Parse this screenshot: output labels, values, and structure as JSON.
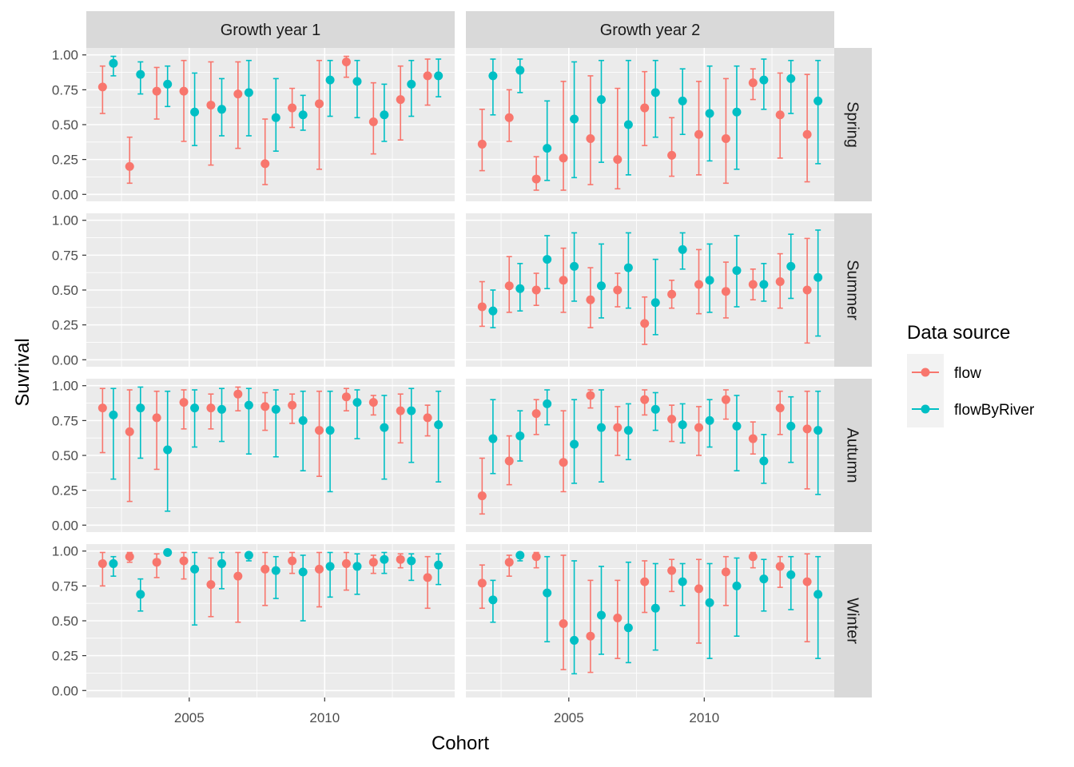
{
  "chart_data": {
    "type": "scatter",
    "xlabel": "Cohort",
    "ylabel": "Suvrival",
    "xlim": [
      2001.2,
      2014.8
    ],
    "ylim": [
      -0.05,
      1.05
    ],
    "x_ticks": [
      2005,
      2010
    ],
    "x_tick_labels": [
      "2005",
      "2010"
    ],
    "y_ticks": [
      0,
      0.25,
      0.5,
      0.75,
      1
    ],
    "y_tick_labels": [
      "0.00",
      "0.25",
      "0.50",
      "0.75",
      "1.00"
    ],
    "grid": true,
    "dodge": 0.4,
    "columns": [
      "Growth year 1",
      "Growth year 2"
    ],
    "rows": [
      "Spring",
      "Summer",
      "Autumn",
      "Winter"
    ],
    "legend": {
      "title": "Data source",
      "position": "right",
      "entries": [
        {
          "name": "flow",
          "color": "#F8766D"
        },
        {
          "name": "flowByRiver",
          "color": "#00BFC4"
        }
      ]
    },
    "series_names": [
      "flow",
      "flowByRiver"
    ],
    "series_colors": [
      "#F8766D",
      "#00BFC4"
    ],
    "x": [
      2002,
      2003,
      2004,
      2005,
      2006,
      2007,
      2008,
      2009,
      2010,
      2011,
      2012,
      2013,
      2014
    ],
    "panels": [
      {
        "column": "Growth year 1",
        "row": "Spring",
        "flow": {
          "y": [
            0.77,
            0.2,
            0.74,
            0.74,
            0.64,
            0.72,
            0.22,
            0.62,
            0.65,
            0.95,
            0.52,
            0.68,
            0.85
          ],
          "lo": [
            0.58,
            0.08,
            0.54,
            0.38,
            0.21,
            0.33,
            0.07,
            0.48,
            0.18,
            0.84,
            0.29,
            0.39,
            0.64
          ],
          "hi": [
            0.92,
            0.41,
            0.91,
            0.96,
            0.95,
            0.95,
            0.54,
            0.76,
            0.96,
            0.99,
            0.8,
            0.92,
            0.97
          ]
        },
        "flowByRiver": {
          "y": [
            0.94,
            0.86,
            0.79,
            0.59,
            0.61,
            0.73,
            0.55,
            0.57,
            0.82,
            0.81,
            0.57,
            0.79,
            0.85
          ],
          "lo": [
            0.85,
            0.72,
            0.63,
            0.35,
            0.42,
            0.42,
            0.31,
            0.46,
            0.56,
            0.55,
            0.38,
            0.56,
            0.7
          ],
          "hi": [
            0.99,
            0.95,
            0.92,
            0.87,
            0.83,
            0.96,
            0.83,
            0.71,
            0.96,
            0.96,
            0.79,
            0.96,
            0.97
          ]
        }
      },
      {
        "column": "Growth year 2",
        "row": "Spring",
        "flow": {
          "y": [
            0.36,
            0.55,
            0.11,
            0.26,
            0.4,
            0.25,
            0.62,
            0.28,
            0.43,
            0.4,
            0.8,
            0.57,
            0.43
          ],
          "lo": [
            0.17,
            0.38,
            0.03,
            0.03,
            0.07,
            0.04,
            0.35,
            0.13,
            0.14,
            0.08,
            0.68,
            0.26,
            0.09
          ],
          "hi": [
            0.61,
            0.75,
            0.27,
            0.81,
            0.85,
            0.76,
            0.88,
            0.55,
            0.81,
            0.83,
            0.9,
            0.87,
            0.86
          ]
        },
        "flowByRiver": {
          "y": [
            0.85,
            0.89,
            0.33,
            0.54,
            0.68,
            0.5,
            0.73,
            0.67,
            0.58,
            0.59,
            0.82,
            0.83,
            0.67
          ],
          "lo": [
            0.57,
            0.73,
            0.1,
            0.12,
            0.23,
            0.14,
            0.41,
            0.43,
            0.24,
            0.18,
            0.61,
            0.58,
            0.22
          ],
          "hi": [
            0.97,
            0.97,
            0.67,
            0.95,
            0.96,
            0.96,
            0.96,
            0.9,
            0.92,
            0.92,
            0.97,
            0.96,
            0.96
          ]
        }
      },
      {
        "column": "Growth year 2",
        "row": "Summer",
        "flow": {
          "y": [
            0.38,
            0.53,
            0.5,
            0.57,
            0.43,
            0.5,
            0.26,
            0.47,
            0.54,
            0.49,
            0.54,
            0.56,
            0.5
          ],
          "lo": [
            0.24,
            0.34,
            0.39,
            0.34,
            0.23,
            0.38,
            0.11,
            0.37,
            0.33,
            0.3,
            0.43,
            0.37,
            0.12
          ],
          "hi": [
            0.56,
            0.74,
            0.62,
            0.8,
            0.66,
            0.62,
            0.45,
            0.57,
            0.79,
            0.7,
            0.65,
            0.76,
            0.87
          ]
        },
        "flowByRiver": {
          "y": [
            0.35,
            0.51,
            0.72,
            0.67,
            0.53,
            0.66,
            0.41,
            0.79,
            0.57,
            0.64,
            0.54,
            0.67,
            0.59
          ],
          "lo": [
            0.23,
            0.35,
            0.51,
            0.42,
            0.3,
            0.37,
            0.18,
            0.65,
            0.34,
            0.38,
            0.42,
            0.44,
            0.17
          ],
          "hi": [
            0.5,
            0.69,
            0.89,
            0.91,
            0.83,
            0.91,
            0.72,
            0.91,
            0.83,
            0.89,
            0.69,
            0.9,
            0.93
          ]
        }
      },
      {
        "column": "Growth year 1",
        "row": "Autumn",
        "flow": {
          "y": [
            0.84,
            0.67,
            0.77,
            0.88,
            0.84,
            0.94,
            0.85,
            0.86,
            0.68,
            0.92,
            0.88,
            0.82,
            0.77
          ],
          "lo": [
            0.52,
            0.17,
            0.4,
            0.69,
            0.69,
            0.82,
            0.68,
            0.73,
            0.35,
            0.82,
            0.79,
            0.59,
            0.64
          ],
          "hi": [
            0.98,
            0.97,
            0.96,
            0.97,
            0.94,
            0.99,
            0.95,
            0.94,
            0.96,
            0.98,
            0.93,
            0.94,
            0.86
          ]
        },
        "flowByRiver": {
          "y": [
            0.79,
            0.84,
            0.54,
            0.84,
            0.83,
            0.86,
            0.83,
            0.75,
            0.68,
            0.88,
            0.7,
            0.82,
            0.72
          ],
          "lo": [
            0.33,
            0.48,
            0.1,
            0.56,
            0.6,
            0.51,
            0.49,
            0.39,
            0.24,
            0.62,
            0.33,
            0.45,
            0.31
          ],
          "hi": [
            0.98,
            0.99,
            0.96,
            0.97,
            0.98,
            0.98,
            0.97,
            0.96,
            0.96,
            0.97,
            0.93,
            0.98,
            0.96
          ]
        }
      },
      {
        "column": "Growth year 2",
        "row": "Autumn",
        "flow": {
          "y": [
            0.21,
            0.46,
            0.8,
            0.45,
            0.93,
            0.7,
            0.9,
            0.76,
            0.7,
            0.9,
            0.62,
            0.84,
            0.69
          ],
          "lo": [
            0.08,
            0.29,
            0.65,
            0.24,
            0.84,
            0.5,
            0.79,
            0.6,
            0.5,
            0.76,
            0.51,
            0.65,
            0.26
          ],
          "hi": [
            0.48,
            0.64,
            0.9,
            0.82,
            0.97,
            0.85,
            0.97,
            0.86,
            0.85,
            0.97,
            0.74,
            0.96,
            0.96
          ]
        },
        "flowByRiver": {
          "y": [
            0.62,
            0.64,
            0.87,
            0.58,
            0.7,
            0.68,
            0.83,
            0.72,
            0.75,
            0.71,
            0.46,
            0.71,
            0.68
          ],
          "lo": [
            0.37,
            0.46,
            0.72,
            0.3,
            0.31,
            0.47,
            0.68,
            0.59,
            0.56,
            0.39,
            0.3,
            0.45,
            0.22
          ],
          "hi": [
            0.9,
            0.82,
            0.97,
            0.9,
            0.97,
            0.87,
            0.95,
            0.87,
            0.9,
            0.93,
            0.65,
            0.92,
            0.96
          ]
        }
      },
      {
        "column": "Growth year 1",
        "row": "Winter",
        "flow": {
          "y": [
            0.91,
            0.96,
            0.92,
            0.93,
            0.76,
            0.82,
            0.87,
            0.93,
            0.87,
            0.91,
            0.92,
            0.94,
            0.81
          ],
          "lo": [
            0.75,
            0.92,
            0.81,
            0.8,
            0.53,
            0.49,
            0.61,
            0.84,
            0.6,
            0.72,
            0.84,
            0.88,
            0.59
          ],
          "hi": [
            0.99,
            0.99,
            0.98,
            0.99,
            0.95,
            0.99,
            0.99,
            0.99,
            0.99,
            0.99,
            0.97,
            0.98,
            0.96
          ]
        },
        "flowByRiver": {
          "y": [
            0.91,
            0.69,
            0.99,
            0.87,
            0.91,
            0.97,
            0.86,
            0.85,
            0.89,
            0.89,
            0.94,
            0.93,
            0.9
          ],
          "lo": [
            0.82,
            0.57,
            0.97,
            0.47,
            0.73,
            0.93,
            0.66,
            0.5,
            0.67,
            0.69,
            0.84,
            0.79,
            0.76
          ],
          "hi": [
            0.96,
            0.8,
            1.0,
            0.99,
            0.99,
            0.99,
            0.96,
            0.97,
            0.99,
            0.98,
            0.99,
            0.98,
            0.98
          ]
        }
      },
      {
        "column": "Growth year 2",
        "row": "Winter",
        "flow": {
          "y": [
            0.77,
            0.92,
            0.96,
            0.48,
            0.39,
            0.52,
            0.78,
            0.86,
            0.73,
            0.85,
            0.96,
            0.89,
            0.78
          ],
          "lo": [
            0.59,
            0.82,
            0.88,
            0.15,
            0.13,
            0.23,
            0.56,
            0.71,
            0.34,
            0.61,
            0.88,
            0.74,
            0.35
          ],
          "hi": [
            0.9,
            0.97,
            0.99,
            0.97,
            0.79,
            0.79,
            0.93,
            0.94,
            0.94,
            0.96,
            0.99,
            0.96,
            0.98
          ]
        },
        "flowByRiver": {
          "y": [
            0.65,
            0.97,
            0.7,
            0.36,
            0.54,
            0.45,
            0.59,
            0.78,
            0.63,
            0.75,
            0.8,
            0.83,
            0.69
          ],
          "lo": [
            0.49,
            0.93,
            0.35,
            0.12,
            0.26,
            0.2,
            0.29,
            0.61,
            0.23,
            0.39,
            0.57,
            0.58,
            0.23
          ],
          "hi": [
            0.79,
            0.99,
            0.96,
            0.93,
            0.89,
            0.92,
            0.91,
            0.91,
            0.91,
            0.95,
            0.94,
            0.96,
            0.96
          ]
        }
      }
    ]
  }
}
